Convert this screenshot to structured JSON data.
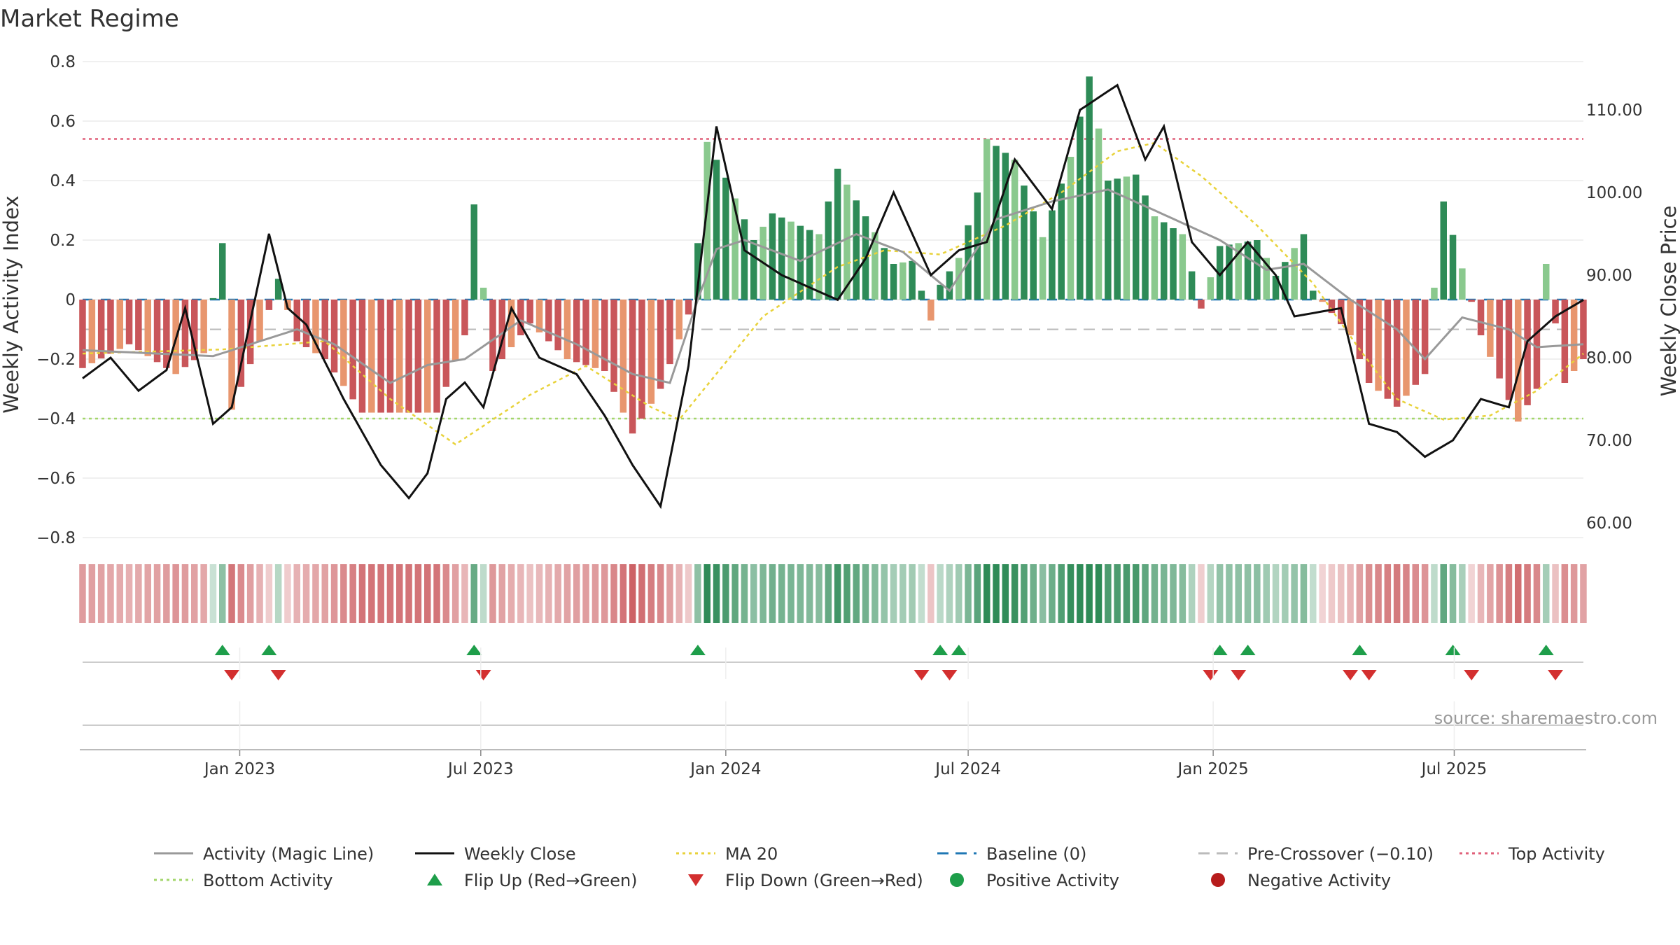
{
  "chart_data": {
    "type": "bar",
    "title": "Market Regime",
    "ylabel": "Weekly Activity Index",
    "y2label": "Weekly Close Price",
    "ylim": [
      -0.8,
      0.8
    ],
    "y2lim": [
      60,
      110
    ],
    "yticks": [
      "0.8",
      "0.6",
      "0.4",
      "0.2",
      "0",
      "−0.2",
      "−0.4",
      "−0.6",
      "−0.8"
    ],
    "y2ticks": [
      "110.00",
      "100.00",
      "90.00",
      "80.00",
      "70.00",
      "60.00"
    ],
    "x_start": "2022-09-05",
    "x_end": "2025-10-06",
    "xticks": [
      "Jan 2023",
      "Jul 2023",
      "Jan 2024",
      "Jul 2024",
      "Jan 2025",
      "Jul 2025"
    ],
    "xtick_dates": [
      "2023-01-01",
      "2023-07-01",
      "2024-01-01",
      "2024-07-01",
      "2025-01-01",
      "2025-07-01"
    ],
    "activity_anchors": [
      [
        "2022-09-05",
        -0.23
      ],
      [
        "2022-10-10",
        -0.15
      ],
      [
        "2022-11-14",
        -0.25
      ],
      [
        "2022-12-05",
        -0.18
      ],
      [
        "2022-12-19",
        0.19
      ],
      [
        "2022-12-26",
        -0.37
      ],
      [
        "2023-01-16",
        -0.14
      ],
      [
        "2023-01-30",
        0.07
      ],
      [
        "2023-02-13",
        -0.14
      ],
      [
        "2023-03-06",
        -0.2
      ],
      [
        "2023-04-03",
        -0.38
      ],
      [
        "2023-05-01",
        -0.38
      ],
      [
        "2023-05-29",
        -0.38
      ],
      [
        "2023-06-19",
        -0.12
      ],
      [
        "2023-06-26",
        0.32
      ],
      [
        "2023-07-10",
        -0.24
      ],
      [
        "2023-08-07",
        -0.08
      ],
      [
        "2023-09-04",
        -0.2
      ],
      [
        "2023-10-02",
        -0.24
      ],
      [
        "2023-10-23",
        -0.45
      ],
      [
        "2023-11-13",
        -0.3
      ],
      [
        "2023-12-04",
        -0.05
      ],
      [
        "2023-12-11",
        0.19
      ],
      [
        "2023-12-18",
        0.53
      ],
      [
        "2024-01-01",
        0.41
      ],
      [
        "2024-01-22",
        0.2
      ],
      [
        "2024-02-05",
        0.29
      ],
      [
        "2024-03-11",
        0.22
      ],
      [
        "2024-03-25",
        0.44
      ],
      [
        "2024-05-06",
        0.12
      ],
      [
        "2024-05-20",
        0.13
      ],
      [
        "2024-06-03",
        -0.07
      ],
      [
        "2024-06-10",
        0.05
      ],
      [
        "2024-06-24",
        0.14
      ],
      [
        "2024-07-08",
        0.36
      ],
      [
        "2024-07-15",
        0.54
      ],
      [
        "2024-08-05",
        0.47
      ],
      [
        "2024-08-26",
        0.21
      ],
      [
        "2024-09-16",
        0.48
      ],
      [
        "2024-09-30",
        0.75
      ],
      [
        "2024-10-14",
        0.4
      ],
      [
        "2024-11-04",
        0.42
      ],
      [
        "2024-11-18",
        0.28
      ],
      [
        "2024-12-09",
        0.22
      ],
      [
        "2024-12-23",
        -0.03
      ],
      [
        "2025-01-06",
        0.18
      ],
      [
        "2025-02-03",
        0.2
      ],
      [
        "2025-02-17",
        0.08
      ],
      [
        "2025-03-10",
        0.22
      ],
      [
        "2025-03-17",
        0.03
      ],
      [
        "2025-04-14",
        -0.12
      ],
      [
        "2025-04-28",
        -0.28
      ],
      [
        "2025-05-19",
        -0.36
      ],
      [
        "2025-06-09",
        -0.25
      ],
      [
        "2025-06-23",
        0.33
      ],
      [
        "2025-07-21",
        -0.12
      ],
      [
        "2025-08-18",
        -0.41
      ],
      [
        "2025-09-01",
        -0.3
      ],
      [
        "2025-09-08",
        0.12
      ],
      [
        "2025-09-22",
        -0.28
      ],
      [
        "2025-10-06",
        -0.2
      ]
    ],
    "magic_line_anchors": [
      [
        "2022-09-05",
        -0.17
      ],
      [
        "2022-12-12",
        -0.19
      ],
      [
        "2023-02-13",
        -0.1
      ],
      [
        "2023-03-13",
        -0.15
      ],
      [
        "2023-04-24",
        -0.28
      ],
      [
        "2023-05-22",
        -0.22
      ],
      [
        "2023-06-19",
        -0.2
      ],
      [
        "2023-07-31",
        -0.07
      ],
      [
        "2023-09-11",
        -0.15
      ],
      [
        "2023-10-23",
        -0.25
      ],
      [
        "2023-11-20",
        -0.28
      ],
      [
        "2023-12-11",
        0.0
      ],
      [
        "2023-12-25",
        0.17
      ],
      [
        "2024-01-15",
        0.2
      ],
      [
        "2024-02-26",
        0.13
      ],
      [
        "2024-04-08",
        0.22
      ],
      [
        "2024-05-13",
        0.16
      ],
      [
        "2024-06-17",
        0.03
      ],
      [
        "2024-07-22",
        0.27
      ],
      [
        "2024-09-02",
        0.33
      ],
      [
        "2024-10-14",
        0.37
      ],
      [
        "2024-11-18",
        0.3
      ],
      [
        "2025-01-06",
        0.2
      ],
      [
        "2025-02-10",
        0.1
      ],
      [
        "2025-03-10",
        0.12
      ],
      [
        "2025-04-14",
        0.0
      ],
      [
        "2025-05-19",
        -0.1
      ],
      [
        "2025-06-09",
        -0.2
      ],
      [
        "2025-07-07",
        -0.06
      ],
      [
        "2025-08-11",
        -0.1
      ],
      [
        "2025-09-01",
        -0.16
      ],
      [
        "2025-10-06",
        -0.15
      ]
    ],
    "weekly_close_anchors": [
      [
        "2022-09-05",
        77.5
      ],
      [
        "2022-09-26",
        80.0
      ],
      [
        "2022-10-17",
        76.0
      ],
      [
        "2022-11-07",
        78.5
      ],
      [
        "2022-11-21",
        86.0
      ],
      [
        "2022-12-12",
        72.0
      ],
      [
        "2022-12-26",
        74.0
      ],
      [
        "2023-01-23",
        95.0
      ],
      [
        "2023-02-06",
        86.0
      ],
      [
        "2023-02-20",
        84.0
      ],
      [
        "2023-03-20",
        75.0
      ],
      [
        "2023-04-17",
        67.0
      ],
      [
        "2023-05-08",
        63.0
      ],
      [
        "2023-05-22",
        66.0
      ],
      [
        "2023-06-05",
        75.0
      ],
      [
        "2023-06-19",
        77.0
      ],
      [
        "2023-07-03",
        74.0
      ],
      [
        "2023-07-24",
        86.0
      ],
      [
        "2023-08-14",
        80.0
      ],
      [
        "2023-09-11",
        78.0
      ],
      [
        "2023-10-02",
        73.0
      ],
      [
        "2023-10-23",
        67.0
      ],
      [
        "2023-11-13",
        62.0
      ],
      [
        "2023-12-04",
        79.0
      ],
      [
        "2023-12-25",
        108.0
      ],
      [
        "2024-01-15",
        93.0
      ],
      [
        "2024-02-12",
        90.0
      ],
      [
        "2024-03-25",
        87.0
      ],
      [
        "2024-04-15",
        92.0
      ],
      [
        "2024-05-06",
        100.0
      ],
      [
        "2024-06-03",
        90.0
      ],
      [
        "2024-06-24",
        93.0
      ],
      [
        "2024-07-15",
        94.0
      ],
      [
        "2024-08-05",
        104.0
      ],
      [
        "2024-09-02",
        98.0
      ],
      [
        "2024-09-23",
        110.0
      ],
      [
        "2024-10-21",
        113.0
      ],
      [
        "2024-11-11",
        104.0
      ],
      [
        "2024-11-25",
        108.0
      ],
      [
        "2024-12-16",
        94.0
      ],
      [
        "2025-01-06",
        90.0
      ],
      [
        "2025-01-27",
        94.0
      ],
      [
        "2025-02-17",
        90.0
      ],
      [
        "2025-03-03",
        85.0
      ],
      [
        "2025-04-07",
        86.0
      ],
      [
        "2025-04-28",
        72.0
      ],
      [
        "2025-05-19",
        71.0
      ],
      [
        "2025-06-09",
        68.0
      ],
      [
        "2025-06-30",
        70.0
      ],
      [
        "2025-07-21",
        75.0
      ],
      [
        "2025-08-11",
        74.0
      ],
      [
        "2025-08-25",
        82.0
      ],
      [
        "2025-09-15",
        85.0
      ],
      [
        "2025-10-06",
        87.0
      ]
    ],
    "ma20_anchors": [
      [
        "2022-09-05",
        80.5
      ],
      [
        "2022-12-19",
        81.0
      ],
      [
        "2023-03-06",
        82.0
      ],
      [
        "2023-04-24",
        75.0
      ],
      [
        "2023-06-12",
        69.5
      ],
      [
        "2023-08-07",
        75.5
      ],
      [
        "2023-09-18",
        79.0
      ],
      [
        "2023-11-06",
        74.0
      ],
      [
        "2023-11-27",
        72.5
      ],
      [
        "2024-01-29",
        85.0
      ],
      [
        "2024-03-25",
        91.0
      ],
      [
        "2024-04-29",
        93.0
      ],
      [
        "2024-06-10",
        92.5
      ],
      [
        "2024-07-29",
        96.0
      ],
      [
        "2024-09-09",
        100.0
      ],
      [
        "2024-10-21",
        105.0
      ],
      [
        "2024-11-18",
        106.0
      ],
      [
        "2024-12-23",
        102.0
      ],
      [
        "2025-02-03",
        96.0
      ],
      [
        "2025-03-17",
        89.0
      ],
      [
        "2025-04-21",
        81.0
      ],
      [
        "2025-05-19",
        75.0
      ],
      [
        "2025-06-23",
        72.5
      ],
      [
        "2025-07-28",
        73.0
      ],
      [
        "2025-09-01",
        76.0
      ],
      [
        "2025-10-06",
        80.5
      ]
    ],
    "top_activity": 0.54,
    "bottom_activity": -0.4,
    "pre_crossover": -0.1,
    "baseline": 0,
    "flip_up_dates": [
      "2022-12-19",
      "2023-01-23",
      "2023-06-26",
      "2023-12-11",
      "2024-06-10",
      "2024-06-24",
      "2025-01-06",
      "2025-01-27",
      "2025-04-21",
      "2025-06-30",
      "2025-09-08"
    ],
    "flip_down_dates": [
      "2022-12-26",
      "2023-01-30",
      "2023-07-03",
      "2024-05-27",
      "2024-06-17",
      "2024-12-30",
      "2025-01-20",
      "2025-04-14",
      "2025-04-28",
      "2025-07-14",
      "2025-09-15"
    ],
    "colors": {
      "pos_strong": "#2e8b57",
      "pos_light": "#8ac98e",
      "neg_strong": "#c9565a",
      "neg_light": "#e8966e",
      "magic_line": "#999999",
      "weekly_close": "#111111",
      "ma20": "#e8d23a",
      "baseline": "#1f77b4",
      "pre_crossover": "#bbbbbb",
      "top_activity": "#e0607a",
      "bottom_activity": "#a3d66b",
      "flip_up": "#1e9e4a",
      "flip_down": "#d32f2f",
      "positive_dot": "#1e9e4a",
      "negative_dot": "#b71c1c"
    },
    "legend": [
      {
        "label": "Activity (Magic Line)",
        "kind": "line",
        "style": "solid",
        "color": "#999999"
      },
      {
        "label": "Weekly Close",
        "kind": "line",
        "style": "solid",
        "color": "#111111"
      },
      {
        "label": "MA 20",
        "kind": "line",
        "style": "dotted",
        "color": "#e8d23a"
      },
      {
        "label": "Baseline (0)",
        "kind": "line",
        "style": "dashed",
        "color": "#1f77b4"
      },
      {
        "label": "Pre-Crossover (−0.10)",
        "kind": "line",
        "style": "dashed",
        "color": "#bbbbbb"
      },
      {
        "label": "Top Activity",
        "kind": "line",
        "style": "dotted",
        "color": "#e0607a"
      },
      {
        "label": "Bottom Activity",
        "kind": "line",
        "style": "dotted",
        "color": "#a3d66b"
      },
      {
        "label": "Flip Up (Red→Green)",
        "kind": "tri-up",
        "color": "#1e9e4a"
      },
      {
        "label": "Flip Down (Green→Red)",
        "kind": "tri-down",
        "color": "#d32f2f"
      },
      {
        "label": "Positive Activity",
        "kind": "dot",
        "color": "#1e9e4a"
      },
      {
        "label": "Negative Activity",
        "kind": "dot",
        "color": "#b71c1c"
      }
    ],
    "legend_placement": "bottom"
  },
  "source": "source: sharemaestro.com"
}
